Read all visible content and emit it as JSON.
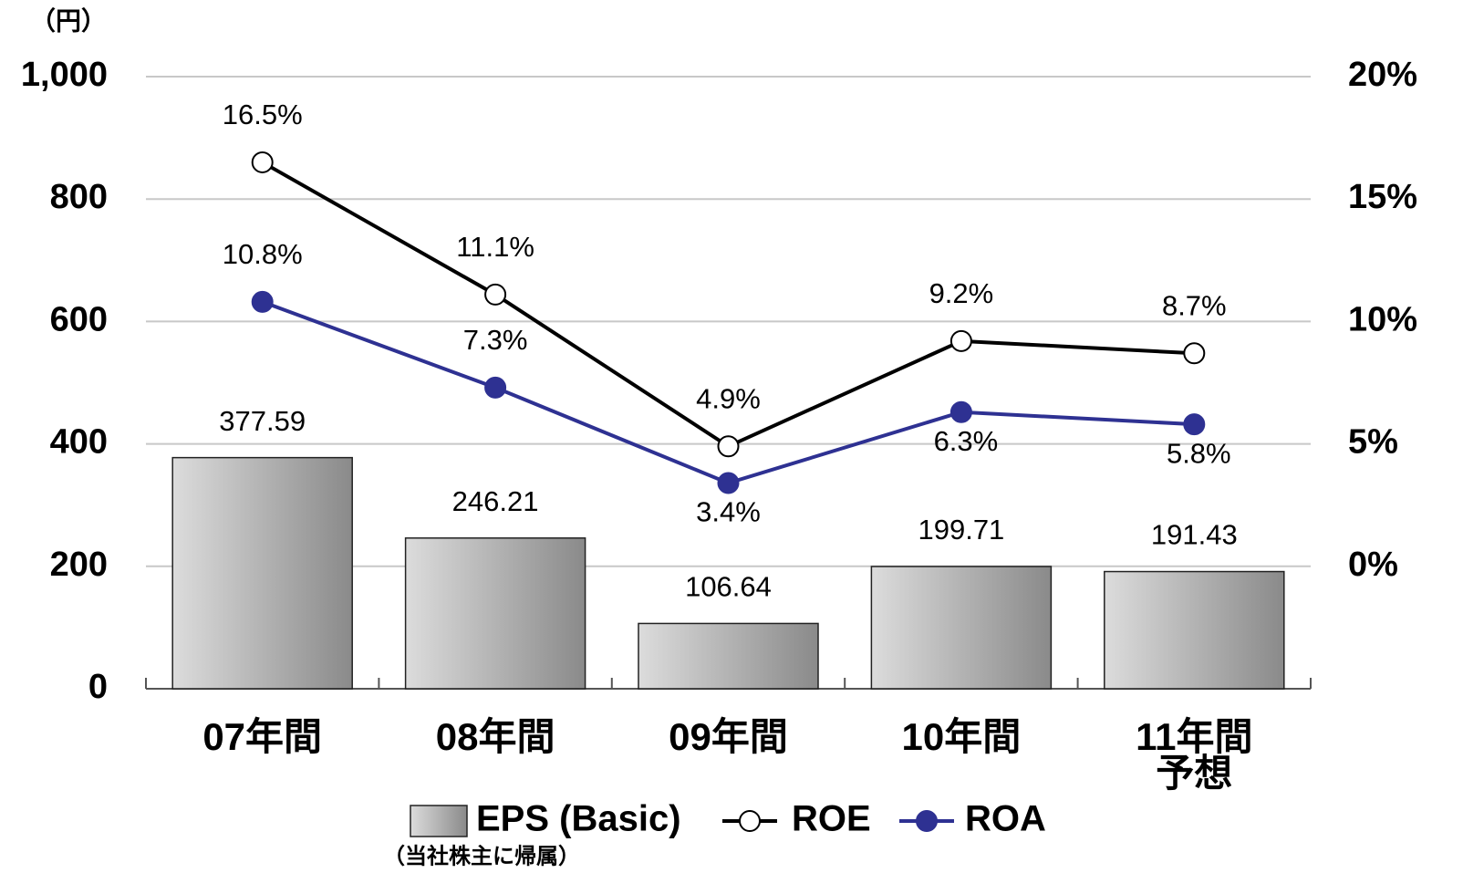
{
  "chart_data": {
    "type": "bar_line",
    "ylabel": "（円）",
    "categories": [
      "07年間",
      "08年間",
      "09年間",
      "10年間",
      "11年間\n予想"
    ],
    "series": [
      {
        "name": "EPS (Basic)",
        "type": "bar",
        "color": "#a0a0a0",
        "values": [
          377.59,
          246.21,
          106.64,
          199.71,
          191.43
        ]
      },
      {
        "name": "ROE",
        "type": "line",
        "axis": "y2",
        "color": "#000000",
        "marker_fill": "#ffffff",
        "values": [
          16.5,
          11.1,
          4.9,
          9.2,
          8.7
        ],
        "value_labels": [
          "16.5%",
          "11.1%",
          "4.9%",
          "9.2%",
          "8.7%"
        ]
      },
      {
        "name": "ROA",
        "type": "line",
        "axis": "y2",
        "color": "#2e3192",
        "marker_fill": "#2e3192",
        "values": [
          10.8,
          7.3,
          3.4,
          6.3,
          5.8
        ],
        "value_labels": [
          "10.8%",
          "7.3%",
          "3.4%",
          "6.3%",
          "5.8%"
        ]
      }
    ],
    "legend_note": "（当社株主に帰属）",
    "ylim": [
      0,
      1000
    ],
    "yticks": [
      0,
      200,
      400,
      600,
      800,
      {
        "value": 1000,
        "label": "1,000"
      }
    ],
    "y2lim": [
      -5,
      20
    ],
    "y2ticks": [
      {
        "value": 0,
        "label": "0%"
      },
      {
        "value": 5,
        "label": "5%"
      },
      {
        "value": 10,
        "label": "10%"
      },
      {
        "value": 15,
        "label": "15%"
      },
      {
        "value": 20,
        "label": "20%"
      }
    ],
    "grid": true
  }
}
